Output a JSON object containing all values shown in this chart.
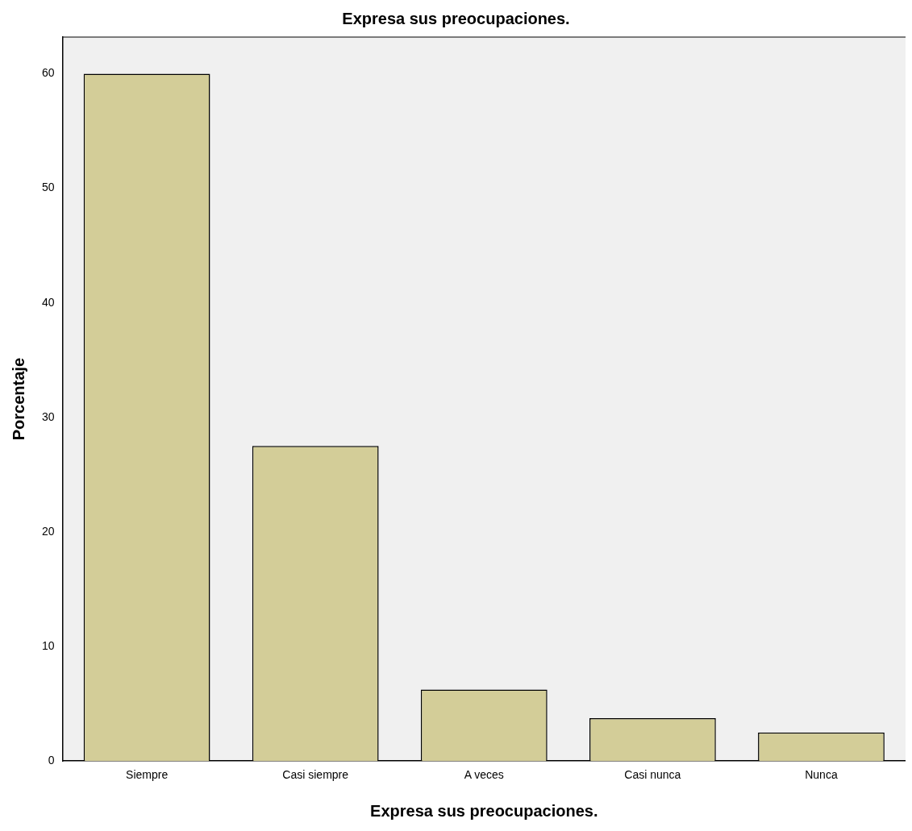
{
  "chart_data": {
    "type": "bar",
    "title": "Expresa sus preocupaciones.",
    "xlabel": "Expresa sus preocupaciones.",
    "ylabel": "Porcentaje",
    "categories": [
      "Siempre",
      "Casi siempre",
      "A veces",
      "Casi nunca",
      "Nunca"
    ],
    "values": [
      60,
      27.5,
      6.25,
      3.75,
      2.5
    ],
    "color": "#d3cd98",
    "ylim": [
      0,
      63.2
    ],
    "yticks": [
      0,
      10,
      20,
      30,
      40,
      50,
      60
    ],
    "grid": false,
    "legend": false
  }
}
